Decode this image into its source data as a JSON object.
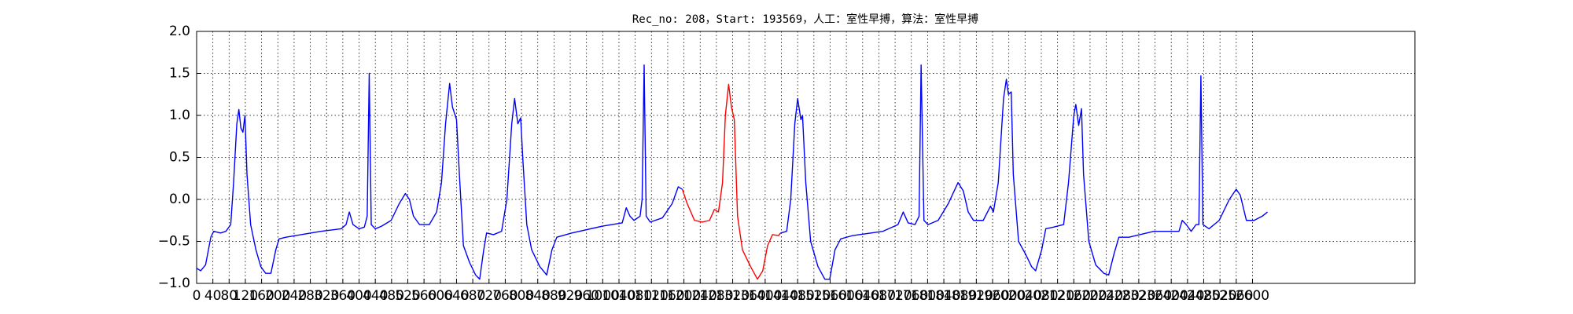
{
  "chart_data": {
    "type": "line",
    "title": "Rec_no: 208，Start: 193569，人工：室性早搏，算法：室性早搏",
    "xlim": [
      0,
      3000
    ],
    "ylim": [
      -1,
      2
    ],
    "xticks": [
      0,
      40,
      80,
      120,
      160,
      200,
      240,
      280,
      320,
      360,
      400,
      440,
      480,
      520,
      560,
      600,
      640,
      680,
      720,
      760,
      800,
      840,
      880,
      920,
      960,
      1000,
      1040,
      1080,
      1120,
      1160,
      1200,
      1240,
      1280,
      1320,
      1360,
      1400,
      1440,
      1480,
      1520,
      1560,
      1600,
      1640,
      1680,
      1720,
      1760,
      1800,
      1840,
      1880,
      1920,
      1960,
      2000,
      2040,
      2080,
      2120,
      2160,
      2200,
      2240,
      2280,
      2320,
      2360,
      2400,
      2440,
      2480,
      2520,
      2560,
      2600
    ],
    "yticks": [
      {
        "value": -1.0,
        "label": "−1.0"
      },
      {
        "value": -0.5,
        "label": "−0.5"
      },
      {
        "value": 0.0,
        "label": "0.0"
      },
      {
        "value": 0.5,
        "label": "0.5"
      },
      {
        "value": 1.0,
        "label": "1.0"
      },
      {
        "value": 1.5,
        "label": "1.5"
      },
      {
        "value": 2.0,
        "label": "2.0"
      }
    ],
    "grid": true,
    "series": [
      {
        "color": "#0000ff",
        "x": [
          0,
          10,
          22,
          35,
          42,
          59,
          72,
          84,
          91,
          99,
          104,
          109,
          114,
          119,
          124,
          133,
          146,
          158,
          170,
          183,
          195,
          203,
          220,
          257,
          306,
          356,
          368,
          376,
          385,
          400,
          413,
          420,
          425,
          430,
          440,
          455,
          479,
          499,
          514,
          524,
          534,
          549,
          573,
          591,
          603,
          613,
          623,
          630,
          640,
          647,
          657,
          672,
          687,
          697,
          707,
          714,
          731,
          751,
          764,
          776,
          783,
          791,
          798,
          803,
          813,
          825,
          845,
          862,
          875,
          887,
          924,
          998,
          1048,
          1058,
          1067,
          1077,
          1092,
          1097,
          1102,
          1107,
          1117,
          1147,
          1171,
          1186,
          1196
        ],
        "values": [
          -0.82,
          -0.85,
          -0.78,
          -0.45,
          -0.38,
          -0.4,
          -0.38,
          -0.3,
          0.2,
          0.9,
          1.07,
          0.85,
          0.8,
          1.0,
          0.3,
          -0.3,
          -0.6,
          -0.8,
          -0.88,
          -0.88,
          -0.6,
          -0.47,
          -0.45,
          -0.42,
          -0.38,
          -0.35,
          -0.3,
          -0.15,
          -0.3,
          -0.35,
          -0.33,
          -0.2,
          1.5,
          -0.3,
          -0.35,
          -0.32,
          -0.25,
          -0.05,
          0.07,
          0.0,
          -0.2,
          -0.3,
          -0.3,
          -0.15,
          0.2,
          0.9,
          1.38,
          1.1,
          0.95,
          0.3,
          -0.55,
          -0.75,
          -0.9,
          -0.95,
          -0.6,
          -0.4,
          -0.42,
          -0.38,
          0.0,
          0.9,
          1.2,
          0.9,
          0.97,
          0.5,
          -0.3,
          -0.6,
          -0.8,
          -0.9,
          -0.6,
          -0.45,
          -0.4,
          -0.32,
          -0.28,
          -0.1,
          -0.2,
          -0.25,
          -0.2,
          0.0,
          1.6,
          -0.2,
          -0.27,
          -0.22,
          -0.05,
          0.15,
          0.12
        ]
      },
      {
        "color": "#ff0000",
        "x": [
          1196,
          1208,
          1226,
          1245,
          1263,
          1275,
          1285,
          1295,
          1302,
          1310,
          1317,
          1324,
          1332,
          1344,
          1364,
          1381,
          1394,
          1406,
          1418,
          1433,
          1438
        ],
        "values": [
          0.12,
          -0.05,
          -0.25,
          -0.27,
          -0.25,
          -0.12,
          -0.15,
          0.2,
          1.0,
          1.37,
          1.1,
          0.95,
          -0.2,
          -0.6,
          -0.8,
          -0.95,
          -0.85,
          -0.55,
          -0.42,
          -0.43,
          -0.4
        ]
      },
      {
        "color": "#0000ff",
        "x": [
          1438,
          1453,
          1463,
          1473,
          1480,
          1488,
          1492,
          1500,
          1512,
          1530,
          1547,
          1559,
          1572,
          1586,
          1616,
          1690,
          1727,
          1740,
          1752,
          1769,
          1779,
          1784,
          1791,
          1801,
          1826,
          1851,
          1875,
          1888,
          1900,
          1913,
          1937,
          1955,
          1962,
          1974,
          1987,
          1994,
          1999,
          2006,
          2011,
          2024,
          2041,
          2056,
          2066,
          2081,
          2091,
          2110,
          2135,
          2147,
          2160,
          2165,
          2172,
          2179,
          2184,
          2197,
          2214,
          2234,
          2246,
          2259,
          2271,
          2296,
          2357,
          2419,
          2427,
          2437,
          2449,
          2461,
          2468,
          2473,
          2478,
          2493,
          2518,
          2543,
          2560,
          2570,
          2585,
          2604,
          2624,
          2637
        ],
        "values": [
          -0.4,
          -0.38,
          0.0,
          0.9,
          1.2,
          0.95,
          1.0,
          0.2,
          -0.5,
          -0.8,
          -0.95,
          -0.95,
          -0.6,
          -0.47,
          -0.43,
          -0.38,
          -0.3,
          -0.15,
          -0.28,
          -0.3,
          -0.2,
          1.6,
          -0.25,
          -0.3,
          -0.25,
          -0.05,
          0.2,
          0.1,
          -0.15,
          -0.25,
          -0.25,
          -0.08,
          -0.15,
          0.2,
          1.2,
          1.43,
          1.25,
          1.28,
          0.3,
          -0.5,
          -0.65,
          -0.8,
          -0.85,
          -0.6,
          -0.35,
          -0.33,
          -0.3,
          0.2,
          1.0,
          1.13,
          0.88,
          1.08,
          0.3,
          -0.5,
          -0.78,
          -0.88,
          -0.9,
          -0.65,
          -0.45,
          -0.45,
          -0.38,
          -0.38,
          -0.25,
          -0.3,
          -0.38,
          -0.3,
          -0.3,
          1.47,
          -0.3,
          -0.35,
          -0.25,
          0.0,
          0.12,
          0.05,
          -0.25,
          -0.25,
          -0.2,
          -0.15
        ]
      }
    ]
  }
}
